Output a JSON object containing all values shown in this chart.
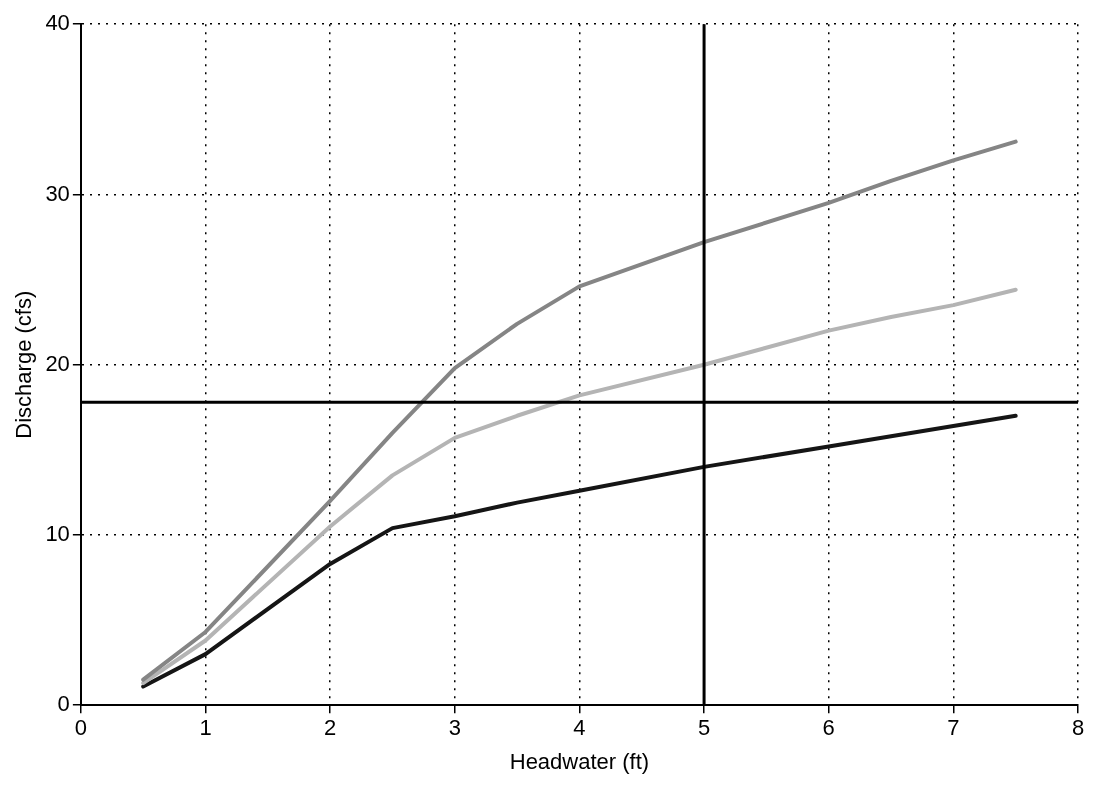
{
  "chart_data": {
    "type": "line",
    "xlabel": "Headwater (ft)",
    "ylabel": "Discharge (cfs)",
    "x": [
      0.5,
      1,
      2,
      2.5,
      3,
      3.5,
      4,
      5,
      6,
      6.5,
      7,
      7.5
    ],
    "series": [
      {
        "color": "#858585",
        "values": [
          1.5,
          4.3,
          12,
          16,
          19.8,
          22.4,
          24.6,
          27.2,
          29.5,
          30.8,
          32,
          33.1
        ]
      },
      {
        "color": "#b4b4b4",
        "values": [
          1.3,
          3.8,
          10.5,
          13.5,
          15.7,
          17,
          18.2,
          20,
          22,
          22.8,
          23.5,
          24.4
        ]
      },
      {
        "color": "#151515",
        "values": [
          1.1,
          3,
          8.3,
          10.4,
          11.1,
          11.9,
          12.6,
          14,
          15.2,
          15.8,
          16.4,
          17
        ]
      }
    ],
    "xlim": [
      0,
      8
    ],
    "xticks": [
      0,
      1,
      2,
      3,
      4,
      5,
      6,
      7,
      8
    ],
    "ylim": [
      0,
      40
    ],
    "yticks": [
      0,
      10,
      20,
      30,
      40
    ],
    "grid": true,
    "legend": false,
    "marker": "none",
    "line_style": "solid",
    "ref_lines": [
      {
        "axis": "x",
        "value": 5,
        "color": "#000000"
      },
      {
        "axis": "y",
        "value": 17.8,
        "color": "#000000"
      }
    ]
  }
}
